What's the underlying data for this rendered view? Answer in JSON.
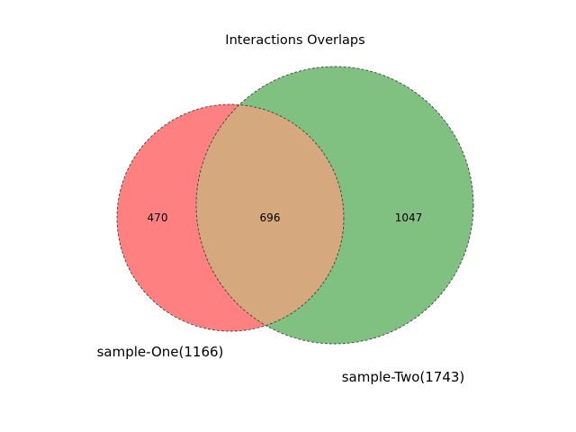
{
  "title": "Interactions Overlaps",
  "venn": {
    "set_a": {
      "label": "sample-One(1166)",
      "total": 1166,
      "only": 470,
      "color": "#ff8080"
    },
    "set_b": {
      "label": "sample-Two(1743)",
      "total": 1743,
      "only": 1047,
      "color": "#80c080"
    },
    "intersection": {
      "value": 696,
      "color": "#d5a97d"
    },
    "region_labels": {
      "a_only": "470",
      "both": "696",
      "b_only": "1047"
    }
  }
}
